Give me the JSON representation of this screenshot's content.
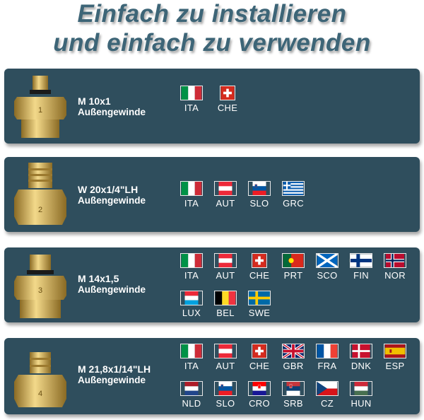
{
  "headline": {
    "line1": "Einfach zu installieren",
    "line2": "und einfach zu verwenden"
  },
  "colors": {
    "panel": "#2f4e5d",
    "headline": "#3d6577",
    "brass": "#c9a24a"
  },
  "fittings": [
    {
      "number": "1",
      "thread": "M 10x1",
      "type": "Außengewinde",
      "countries": [
        "ITA",
        "CHE"
      ]
    },
    {
      "number": "2",
      "thread": "W 20x1/4\"LH",
      "type": "Außengewinde",
      "countries": [
        "ITA",
        "AUT",
        "SLO",
        "GRC"
      ]
    },
    {
      "number": "3",
      "thread": "M 14x1,5",
      "type": "Außengewinde",
      "countries": [
        "ITA",
        "AUT",
        "CHE",
        "PRT",
        "SCO",
        "FIN",
        "NOR",
        "LUX",
        "BEL",
        "SWE"
      ]
    },
    {
      "number": "4",
      "thread": "M 21,8x1/14\"LH",
      "type": "Außengewinde",
      "countries": [
        "ITA",
        "AUT",
        "CHE",
        "GBR",
        "FRA",
        "DNK",
        "ESP",
        "NLD",
        "SLO",
        "CRO",
        "SRB",
        "CZ",
        "HUN"
      ]
    }
  ]
}
